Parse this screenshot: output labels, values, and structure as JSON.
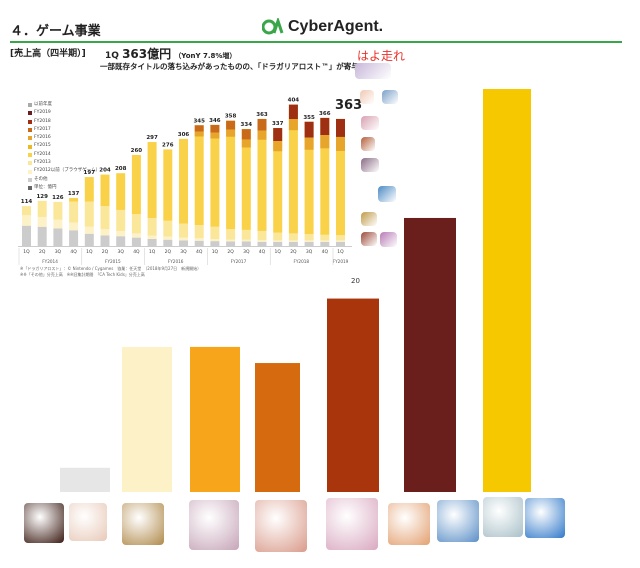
{
  "page": {
    "title": "４．ゲーム事業",
    "brand": "CyberAgent.",
    "section_label": "[売上高（四半期）]",
    "headline_prefix": "1Q",
    "headline_value": "363億円",
    "headline_yoy": "（YonY 7.8%増）",
    "subline": "一部既存タイトルの落ち込みがあったものの、「ドラガリアロスト™」が寄与",
    "annotation": "はよ走れ",
    "page_number": "20",
    "footnote_line1": "※「ドラガリアロスト」：© Nintendo / Cygames　協業：任天堂　（2018年9月27日　新規開始）",
    "footnote_line2": "※※「その他」分売上高　※※旧集計期間　「CA Tech Kids」分売上高",
    "colors": {
      "other": "#cccccc",
      "fy2012": "#fdf1c8",
      "fy2013": "#fbe79a",
      "fy2014": "#f9d24a",
      "fy2015": "#f1b81a",
      "fy2016": "#e7a52c",
      "fy2017": "#c96a1a",
      "fy2018": "#9e2f12",
      "fy2019": "#6a1f1e"
    }
  },
  "chart_data": [
    {
      "type": "bar",
      "stacked": true,
      "unit": "億円",
      "legend_entries": [
        "以前年度",
        "FY2019",
        "FY2018",
        "FY2017",
        "FY2016",
        "FY2015",
        "FY2014",
        "FY2013",
        "FY2012以前（ブラウザゲーム）",
        "その他",
        "単位：億円"
      ],
      "categories": [
        "1Q",
        "2Q",
        "3Q",
        "4Q",
        "1Q",
        "2Q",
        "3Q",
        "4Q",
        "1Q",
        "2Q",
        "3Q",
        "4Q",
        "1Q",
        "2Q",
        "3Q",
        "4Q",
        "1Q",
        "2Q",
        "3Q",
        "4Q",
        "1Q"
      ],
      "fiscal_groups": [
        {
          "label": "FY2014",
          "start": 0,
          "end": 3
        },
        {
          "label": "FY2015",
          "start": 4,
          "end": 7
        },
        {
          "label": "FY2016",
          "start": 8,
          "end": 11
        },
        {
          "label": "FY2017",
          "start": 12,
          "end": 15
        },
        {
          "label": "FY2018",
          "start": 16,
          "end": 19
        },
        {
          "label": "FY2019",
          "start": 20,
          "end": 20
        }
      ],
      "totals": [
        114,
        129,
        126,
        137,
        197,
        204,
        208,
        260,
        297,
        276,
        306,
        345,
        346,
        358,
        334,
        363,
        337,
        404,
        355,
        366,
        363
      ],
      "series": [
        {
          "name": "その他",
          "color_key": "other",
          "values": [
            58,
            55,
            50,
            45,
            35,
            30,
            28,
            24,
            20,
            18,
            16,
            15,
            14,
            13,
            13,
            12,
            12,
            12,
            12,
            12,
            12
          ]
        },
        {
          "name": "FY2012以前（ブラウザゲーム）",
          "color_key": "fy2012",
          "values": [
            30,
            28,
            25,
            22,
            20,
            18,
            15,
            12,
            10,
            9,
            8,
            7,
            6,
            5,
            5,
            5,
            4,
            4,
            4,
            4,
            4
          ]
        },
        {
          "name": "FY2013",
          "color_key": "fy2013",
          "values": [
            26,
            46,
            51,
            60,
            72,
            66,
            60,
            55,
            50,
            45,
            40,
            38,
            35,
            30,
            28,
            26,
            22,
            20,
            18,
            16,
            15
          ]
        },
        {
          "name": "FY2014",
          "color_key": "fy2014",
          "values": [
            0,
            0,
            0,
            10,
            70,
            90,
            105,
            169,
            217,
            204,
            242,
            285,
            291,
            310,
            288,
            320,
            299,
            368,
            321,
            334,
            332
          ]
        }
      ]
    },
    {
      "type": "bar",
      "note": "lower illustrated bars, relative heights only",
      "values": [
        0.06,
        0.36,
        0.36,
        0.32,
        0.48,
        0.68,
        1.0
      ],
      "colors": [
        "#e6e6e6",
        "#fdf1c8",
        "#f7a51b",
        "#d56a0e",
        "#a8350b",
        "#6b1f1d",
        "#f5c800"
      ]
    }
  ],
  "bar_value_labels": [
    "114",
    "129",
    "126",
    "137",
    "197",
    "204",
    "208",
    "260",
    "297",
    "276",
    "306",
    "345",
    "346",
    "358",
    "334",
    "363",
    "337",
    "404",
    "355",
    "366"
  ],
  "side_icons": [
    {
      "name": "game-thumb-1",
      "color": "#c8b7d9"
    },
    {
      "name": "game-thumb-2",
      "color": "#f0c9b3"
    },
    {
      "name": "game-thumb-3",
      "color": "#7aa0c8"
    },
    {
      "name": "game-thumb-4",
      "color": "#d7a0b0"
    },
    {
      "name": "game-thumb-5",
      "color": "#b35d3a"
    },
    {
      "name": "game-thumb-6",
      "color": "#8b6b85"
    },
    {
      "name": "game-thumb-7",
      "color": "#4b8ac4"
    },
    {
      "name": "game-thumb-8",
      "color": "#c09a4a"
    },
    {
      "name": "game-thumb-9",
      "color": "#9c4b3b"
    },
    {
      "name": "game-thumb-10",
      "color": "#b77cb5"
    }
  ],
  "bottom_icons": [
    {
      "name": "game-icon-1",
      "color": "#3a1a12"
    },
    {
      "name": "game-icon-2",
      "color": "#e8c9b8"
    },
    {
      "name": "game-icon-3",
      "color": "#b08a4a"
    },
    {
      "name": "game-icon-4",
      "color": "#c6a5b8"
    },
    {
      "name": "game-icon-5",
      "color": "#d99a8a"
    },
    {
      "name": "game-icon-6",
      "color": "#d9a8c0"
    },
    {
      "name": "game-icon-7",
      "color": "#e3a070"
    },
    {
      "name": "game-icon-8",
      "color": "#5b8fc7"
    },
    {
      "name": "game-icon-9",
      "color": "#a8c0c8"
    },
    {
      "name": "game-icon-10",
      "color": "#2f78c9"
    }
  ]
}
